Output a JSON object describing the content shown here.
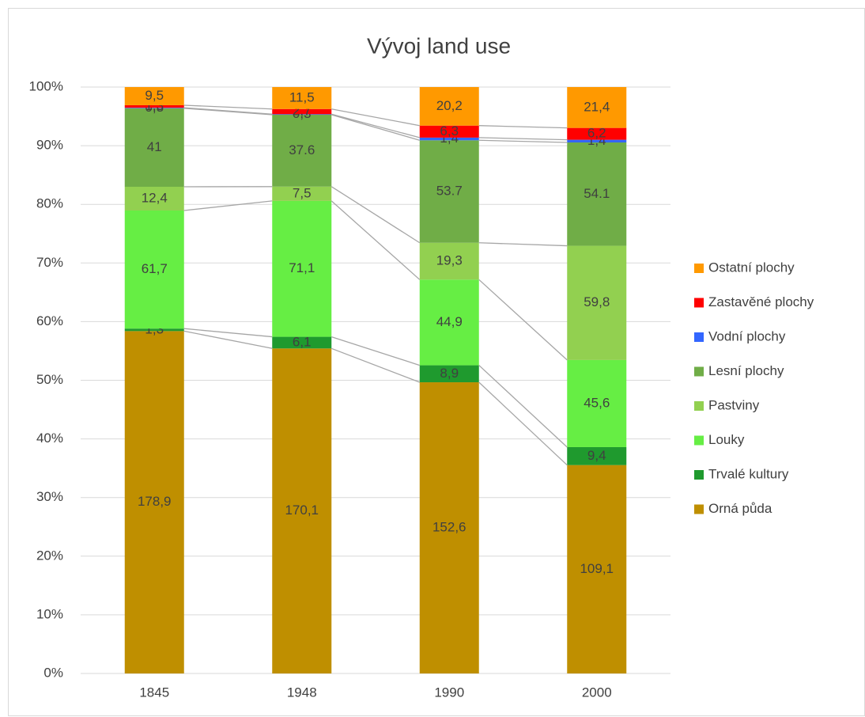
{
  "chart_data": {
    "type": "stacked_bar",
    "stacking": "percent",
    "title": "Vývoj land use",
    "categories": [
      "1845",
      "1948",
      "1990",
      "2000"
    ],
    "series": [
      {
        "name": "Orná půda",
        "color": "#bf8f00",
        "values": [
          178.9,
          170.1,
          152.6,
          109.1
        ],
        "value_labels": [
          "178,9",
          "170,1",
          "152,6",
          "109,1"
        ]
      },
      {
        "name": "Trvalé kultury",
        "color": "#1f9a2e",
        "values": [
          1.3,
          6.1,
          8.9,
          9.4
        ],
        "value_labels": [
          "1,3",
          "6,1",
          "8,9",
          "9,4"
        ]
      },
      {
        "name": "Louky",
        "color": "#66ee44",
        "values": [
          61.7,
          71.1,
          44.9,
          45.6
        ],
        "value_labels": [
          "61,7",
          "71,1",
          "44,9",
          "45,6"
        ]
      },
      {
        "name": "Pastviny",
        "color": "#92d050",
        "values": [
          12.4,
          7.5,
          19.3,
          59.8
        ],
        "value_labels": [
          "12,4",
          "7,5",
          "19,3",
          "59,8"
        ]
      },
      {
        "name": "Lesní plochy",
        "color": "#70ad47",
        "values": [
          41,
          37.6,
          53.7,
          54.1
        ]
      },
      {
        "name": "Vodní plochy",
        "color": "#3366ff",
        "values": [
          0.3,
          0.3,
          1.4,
          1.4
        ],
        "value_labels": [
          "0,3",
          "0,3",
          "1,4",
          "1,4"
        ]
      },
      {
        "name": "Zastavěné plochy",
        "color": "#ff0000",
        "values": [
          1.3,
          2.7,
          6.3,
          6.2
        ],
        "value_labels": [
          "1,3",
          "2,7",
          "6,3",
          "6,2"
        ]
      },
      {
        "name": "Ostatní plochy",
        "color": "#ff9900",
        "values": [
          9.5,
          11.5,
          20.2,
          21.4
        ],
        "value_labels": [
          "9,5",
          "11,5",
          "20,2",
          "21,4"
        ]
      }
    ],
    "ylim": [
      0,
      100
    ],
    "yticks": [
      {
        "value": 0,
        "label": "0%"
      },
      {
        "value": 10,
        "label": "10%"
      },
      {
        "value": 20,
        "label": "20%"
      },
      {
        "value": 30,
        "label": "30%"
      },
      {
        "value": 40,
        "label": "40%"
      },
      {
        "value": 50,
        "label": "50%"
      },
      {
        "value": 60,
        "label": "60%"
      },
      {
        "value": 70,
        "label": "70%"
      },
      {
        "value": 80,
        "label": "80%"
      },
      {
        "value": 90,
        "label": "90%"
      },
      {
        "value": 100,
        "label": "100%"
      }
    ],
    "grid": true,
    "legend": "right",
    "series_lines": true
  }
}
